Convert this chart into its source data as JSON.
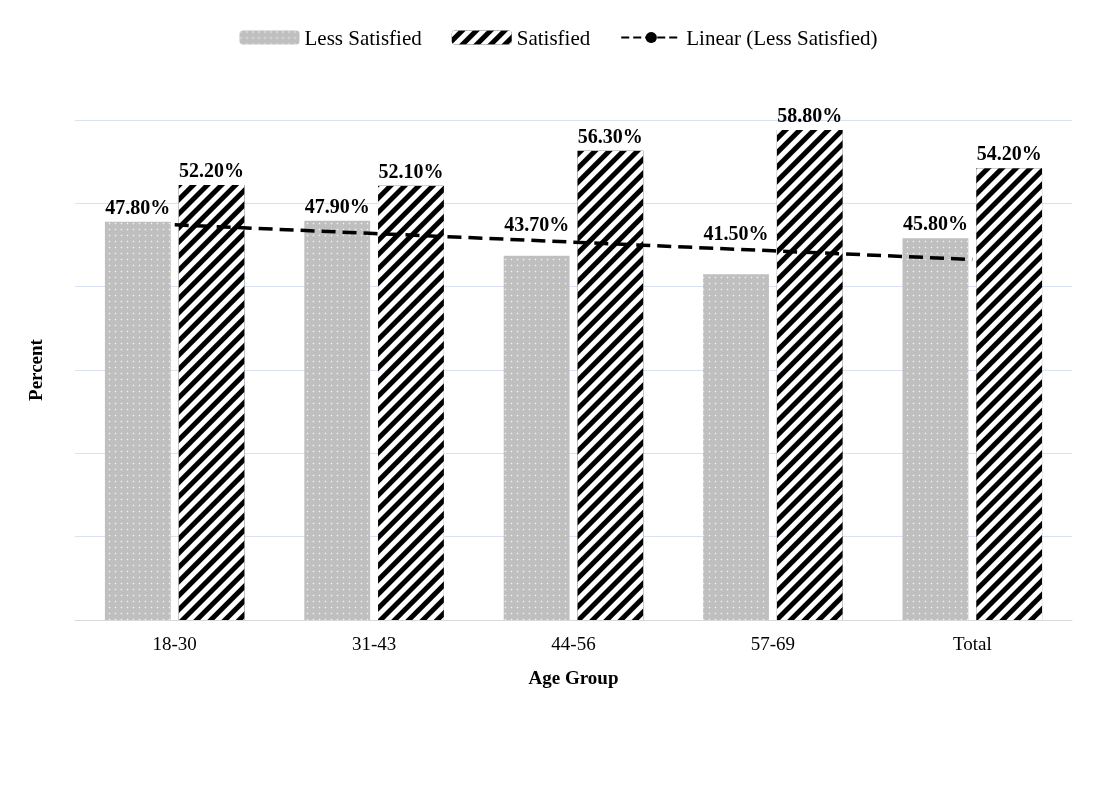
{
  "chart_data": {
    "type": "bar",
    "xlabel": "Age Group",
    "ylabel": "Percent",
    "categories": [
      "18-30",
      "31-43",
      "44-56",
      "57-69",
      "Total"
    ],
    "series": [
      {
        "name": "Less Satisfied",
        "color": "#bfbfbf",
        "values": [
          47.8,
          47.9,
          43.7,
          41.5,
          45.8
        ],
        "value_labels": [
          "47.80%",
          "47.90%",
          "43.70%",
          "41.50%",
          "45.80%"
        ]
      },
      {
        "name": "Satisfied",
        "color": "#000000",
        "values": [
          52.2,
          52.1,
          56.3,
          58.8,
          54.2
        ],
        "value_labels": [
          "52.20%",
          "52.10%",
          "56.30%",
          "58.80%",
          "54.20%"
        ]
      },
      {
        "name": "Linear (Less Satisfied)",
        "type": "line",
        "color": "#000000",
        "line_style": "dashed",
        "marker": "none",
        "x": [
          "18-30",
          "31-43",
          "44-56",
          "57-69",
          "Total"
        ],
        "values": [
          47.42,
          46.38,
          45.34,
          44.3,
          43.26
        ]
      }
    ],
    "ylim": [
      0,
      60
    ],
    "yticks": [
      {
        "value": 0,
        "label": null
      },
      {
        "value": 10,
        "label": null
      },
      {
        "value": 20,
        "label": null
      },
      {
        "value": 30,
        "label": null
      },
      {
        "value": 40,
        "label": null
      },
      {
        "value": 50,
        "label": null
      },
      {
        "value": 60,
        "label": null
      }
    ],
    "grid": "y",
    "legend": "top",
    "tick_labels": "x"
  }
}
